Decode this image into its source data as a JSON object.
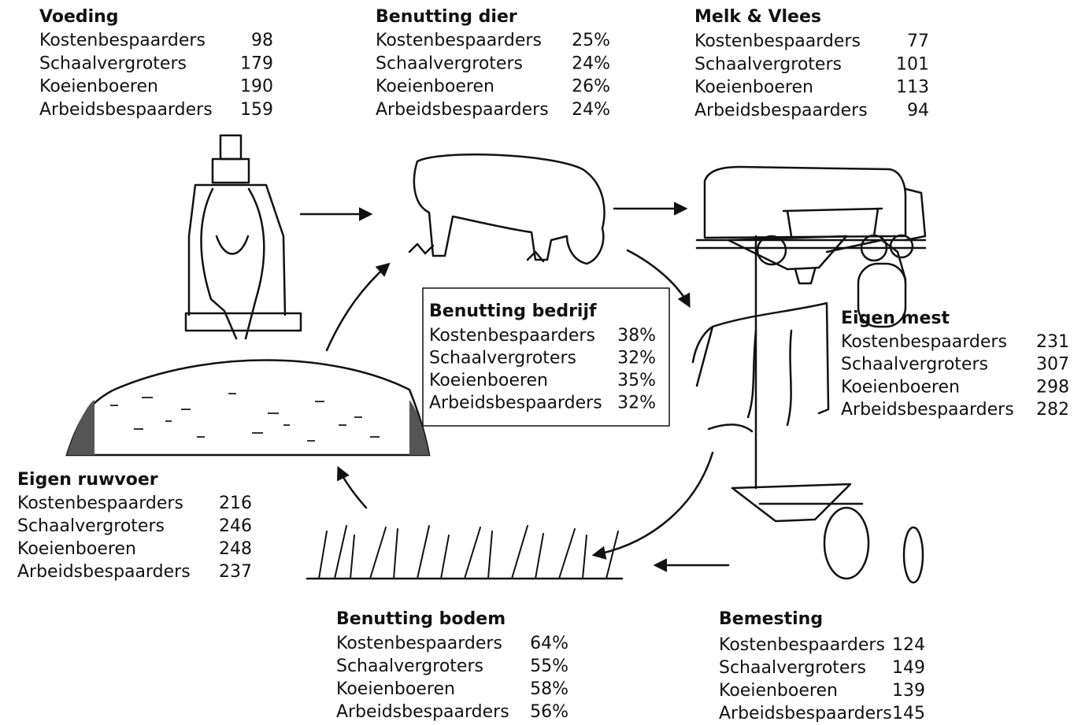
{
  "blocks": [
    {
      "title": "Voeding",
      "rows": [
        [
          "Kostenbespaarders",
          "98"
        ],
        [
          "Schaalvergroters",
          "179"
        ],
        [
          "Koeienboeren",
          "190"
        ],
        [
          "Arbeidsbespaarders",
          "159"
        ]
      ]
    },
    {
      "title": "Benutting dier",
      "rows": [
        [
          "Kostenbespaarders",
          "25%"
        ],
        [
          "Schaalvergroters",
          "24%"
        ],
        [
          "Koeienboeren",
          "26%"
        ],
        [
          "Arbeidsbespaarders",
          "24%"
        ]
      ]
    },
    {
      "title": "Melk & Vlees",
      "rows": [
        [
          "Kostenbespaarders",
          "77"
        ],
        [
          "Schaalvergroters",
          "101"
        ],
        [
          "Koeienboeren",
          "113"
        ],
        [
          "Arbeidsbespaarders",
          "94"
        ]
      ]
    },
    {
      "title": "Benutting bedrijf",
      "rows": [
        [
          "Kostenbespaarders",
          "38%"
        ],
        [
          "Schaalvergroters",
          "32%"
        ],
        [
          "Koeienboeren",
          "35%"
        ],
        [
          "Arbeidsbespaarders",
          "32%"
        ]
      ]
    },
    {
      "title": "Eigen mest",
      "rows": [
        [
          "Kostenbespaarders",
          "231"
        ],
        [
          "Schaalvergroters",
          "307"
        ],
        [
          "Koeienboeren",
          "298"
        ],
        [
          "Arbeidsbespaarders",
          "282"
        ]
      ]
    },
    {
      "title": "Eigen ruwvoer",
      "rows": [
        [
          "Kostenbespaarders",
          "216"
        ],
        [
          "Schaalvergroters",
          "246"
        ],
        [
          "Koeienboeren",
          "248"
        ],
        [
          "Arbeidsbespaarders",
          "237"
        ]
      ]
    },
    {
      "title": "Benutting bodem",
      "rows": [
        [
          "Kostenbespaarders",
          "64%"
        ],
        [
          "Schaalvergroters",
          "55%"
        ],
        [
          "Koeienboeren",
          "58%"
        ],
        [
          "Arbeidsbespaarders",
          "56%"
        ]
      ]
    },
    {
      "title": "Bemesting",
      "rows": [
        [
          "Kostenbespaarders",
          "124"
        ],
        [
          "Schaalvergroters",
          "149"
        ],
        [
          "Koeienboeren",
          "139"
        ],
        [
          "Arbeidsbespaarders",
          "145"
        ]
      ]
    }
  ]
}
